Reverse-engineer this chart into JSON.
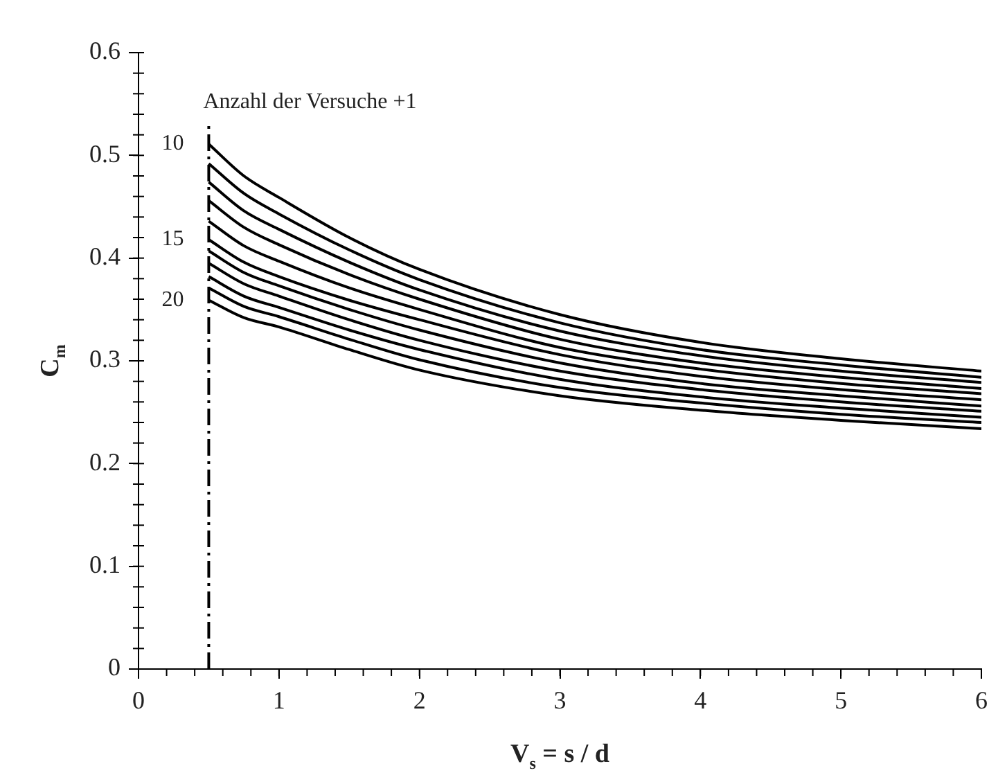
{
  "chart_data": {
    "type": "line",
    "xlabel": "V$_{s}$ = s / d",
    "ylabel": "C$_{m}$",
    "x": [
      0.5,
      0.75,
      1,
      1.5,
      2,
      3,
      4,
      5,
      6
    ],
    "series": [
      {
        "color": "#000000",
        "values": [
          0.511,
          0.48,
          0.459,
          0.42,
          0.389,
          0.345,
          0.318,
          0.302,
          0.29
        ]
      },
      {
        "color": "#000000",
        "values": [
          0.492,
          0.463,
          0.443,
          0.408,
          0.379,
          0.337,
          0.311,
          0.296,
          0.284
        ]
      },
      {
        "color": "#000000",
        "values": [
          0.474,
          0.446,
          0.428,
          0.396,
          0.369,
          0.329,
          0.305,
          0.29,
          0.279
        ]
      },
      {
        "color": "#000000",
        "values": [
          0.456,
          0.43,
          0.413,
          0.384,
          0.36,
          0.321,
          0.298,
          0.284,
          0.273
        ]
      },
      {
        "color": "#000000",
        "values": [
          0.436,
          0.412,
          0.397,
          0.371,
          0.35,
          0.313,
          0.292,
          0.278,
          0.268
        ]
      },
      {
        "color": "#000000",
        "values": [
          0.418,
          0.396,
          0.382,
          0.359,
          0.34,
          0.306,
          0.285,
          0.272,
          0.262
        ]
      },
      {
        "color": "#000000",
        "values": [
          0.407,
          0.386,
          0.373,
          0.35,
          0.33,
          0.298,
          0.278,
          0.266,
          0.256
        ]
      },
      {
        "color": "#000000",
        "values": [
          0.395,
          0.375,
          0.363,
          0.34,
          0.32,
          0.29,
          0.272,
          0.26,
          0.251
        ]
      },
      {
        "color": "#000000",
        "values": [
          0.382,
          0.363,
          0.352,
          0.33,
          0.311,
          0.282,
          0.265,
          0.254,
          0.245
        ]
      },
      {
        "color": "#000000",
        "values": [
          0.371,
          0.353,
          0.343,
          0.321,
          0.301,
          0.274,
          0.259,
          0.248,
          0.24
        ]
      },
      {
        "color": "#000000",
        "values": [
          0.359,
          0.342,
          0.333,
          0.311,
          0.291,
          0.266,
          0.252,
          0.242,
          0.234
        ]
      }
    ],
    "xlim": [
      0,
      6
    ],
    "xticks": [
      0,
      1,
      2,
      3,
      4,
      5,
      6
    ],
    "ylim": [
      0,
      0.6
    ],
    "yticks": [
      0,
      0.1,
      0.2,
      0.3,
      0.4,
      0.5,
      0.6
    ],
    "grid": false,
    "legend": false,
    "marker": "none",
    "line_style": "solid",
    "ref_lines": [
      {
        "axis": "x",
        "value": 0.5,
        "label": "Anzahl der Versuche +1",
        "line_style": "dashed",
        "color": "#000000"
      }
    ],
    "annotations": [
      "10",
      "15",
      "20"
    ]
  }
}
